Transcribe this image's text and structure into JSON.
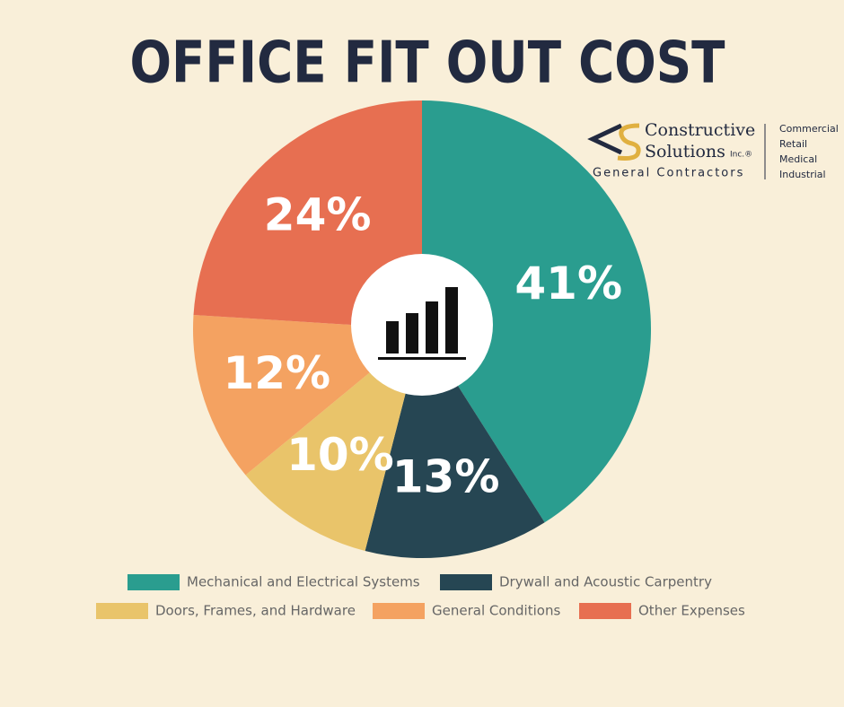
{
  "chart_data": {
    "type": "pie",
    "title": "OFFICE FIT OUT COST",
    "categories": [
      "Mechanical and Electrical Systems",
      "Drywall and Acoustic Carpentry",
      "Doors, Frames, and Hardware",
      "General Conditions",
      "Other Expenses"
    ],
    "values": [
      41,
      13,
      10,
      12,
      24
    ],
    "value_labels": [
      "41%",
      "13%",
      "10%",
      "12%",
      "24%"
    ],
    "colors": [
      "#2a9d8f",
      "#264653",
      "#e9c46a",
      "#f4a261",
      "#e76f51"
    ]
  },
  "logo": {
    "name_line1": "Constructive",
    "name_line2": "Solutions",
    "suffix": "Inc.®",
    "tagline": "General Contractors",
    "sectors": [
      "Commercial",
      "Retail",
      "Medical",
      "Industrial"
    ]
  }
}
